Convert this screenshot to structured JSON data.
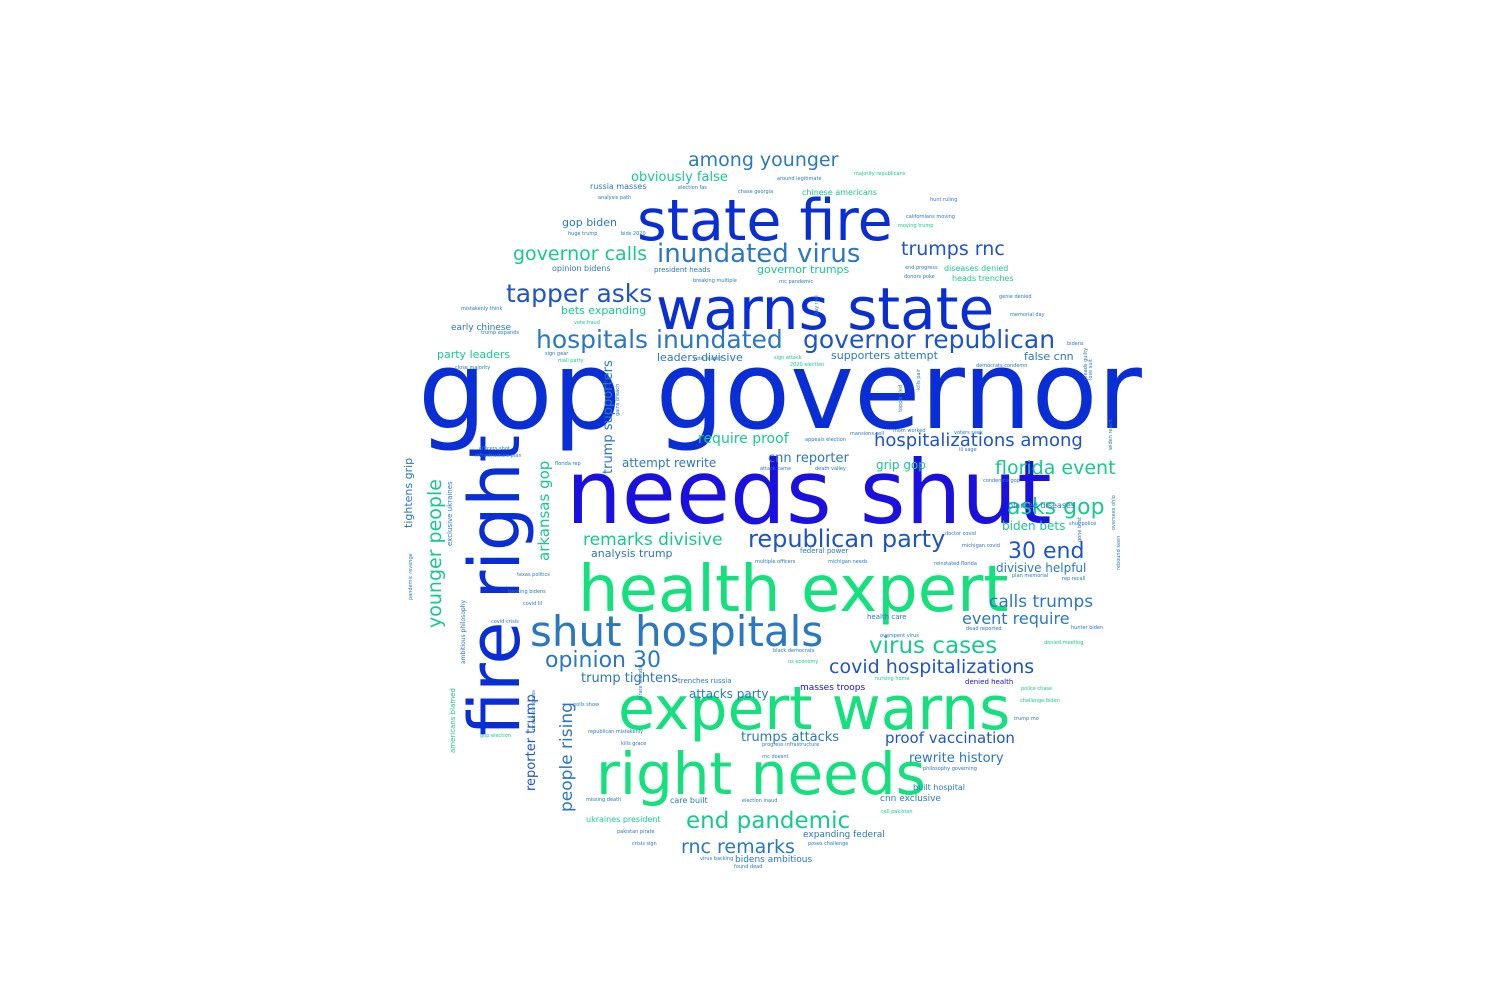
{
  "colors": {
    "royal_blue": "#0a2ed6",
    "deep_blue": "#1a10e0",
    "mid_blue": "#1d55c8",
    "steel_blue": "#2a78c2",
    "teal": "#12a6a6",
    "sea_green": "#18c98f",
    "spring_green": "#14e07e"
  },
  "words": [
    {
      "text": "gop governor",
      "weight": 1.0,
      "color": "royal_blue",
      "vertical": false
    },
    {
      "text": "needs shut",
      "weight": 0.82,
      "color": "deep_blue",
      "vertical": false
    },
    {
      "text": "fire right",
      "weight": 0.64,
      "color": "royal_blue",
      "vertical": true
    },
    {
      "text": "health expert",
      "weight": 0.62,
      "color": "spring_green",
      "vertical": false
    },
    {
      "text": "expert warns",
      "weight": 0.58,
      "color": "spring_green",
      "vertical": false
    },
    {
      "text": "warns state",
      "weight": 0.57,
      "color": "royal_blue",
      "vertical": false
    },
    {
      "text": "state fire",
      "weight": 0.56,
      "color": "royal_blue",
      "vertical": false
    },
    {
      "text": "right needs",
      "weight": 0.57,
      "color": "spring_green",
      "vertical": false
    },
    {
      "text": "shut hospitals",
      "weight": 0.45,
      "color": "steel_blue",
      "vertical": false
    },
    {
      "text": "hospitals inundated",
      "weight": 0.28,
      "color": "steel_blue",
      "vertical": false
    },
    {
      "text": "governor republican",
      "weight": 0.28,
      "color": "mid_blue",
      "vertical": false
    },
    {
      "text": "inundated virus",
      "weight": 0.28,
      "color": "steel_blue",
      "vertical": false
    },
    {
      "text": "tapper asks",
      "weight": 0.27,
      "color": "mid_blue",
      "vertical": false
    },
    {
      "text": "republican party",
      "weight": 0.25,
      "color": "mid_blue",
      "vertical": false
    },
    {
      "text": "virus cases",
      "weight": 0.25,
      "color": "sea_green",
      "vertical": false
    },
    {
      "text": "end pandemic",
      "weight": 0.25,
      "color": "sea_green",
      "vertical": false
    },
    {
      "text": "opinion 30",
      "weight": 0.24,
      "color": "steel_blue",
      "vertical": false
    },
    {
      "text": "asks gop",
      "weight": 0.24,
      "color": "sea_green",
      "vertical": false
    },
    {
      "text": "30 end",
      "weight": 0.24,
      "color": "mid_blue",
      "vertical": false
    },
    {
      "text": "younger people",
      "weight": 0.22,
      "color": "sea_green",
      "vertical": true
    },
    {
      "text": "governor calls",
      "weight": 0.21,
      "color": "sea_green",
      "vertical": false
    },
    {
      "text": "among younger",
      "weight": 0.2,
      "color": "steel_blue",
      "vertical": false
    },
    {
      "text": "trumps rnc",
      "weight": 0.2,
      "color": "mid_blue",
      "vertical": false
    },
    {
      "text": "hospitalizations among",
      "weight": 0.2,
      "color": "mid_blue",
      "vertical": false
    },
    {
      "text": "florida event",
      "weight": 0.2,
      "color": "sea_green",
      "vertical": false
    },
    {
      "text": "covid hospitalizations",
      "weight": 0.2,
      "color": "mid_blue",
      "vertical": false
    },
    {
      "text": "rnc remarks",
      "weight": 0.2,
      "color": "steel_blue",
      "vertical": false
    },
    {
      "text": "remarks divisive",
      "weight": 0.19,
      "color": "sea_green",
      "vertical": false
    },
    {
      "text": "calls trumps",
      "weight": 0.18,
      "color": "steel_blue",
      "vertical": false
    },
    {
      "text": "people rising",
      "weight": 0.18,
      "color": "steel_blue",
      "vertical": true
    },
    {
      "text": "arkansas gop",
      "weight": 0.16,
      "color": "sea_green",
      "vertical": true
    },
    {
      "text": "event require",
      "weight": 0.16,
      "color": "steel_blue",
      "vertical": false
    },
    {
      "text": "proof vaccination",
      "weight": 0.15,
      "color": "mid_blue",
      "vertical": false
    },
    {
      "text": "require proof",
      "weight": 0.15,
      "color": "sea_green",
      "vertical": false
    },
    {
      "text": "cnn reporter",
      "weight": 0.14,
      "color": "steel_blue",
      "vertical": false
    },
    {
      "text": "trumps attacks",
      "weight": 0.14,
      "color": "steel_blue",
      "vertical": false
    },
    {
      "text": "rewrite history",
      "weight": 0.14,
      "color": "steel_blue",
      "vertical": false
    },
    {
      "text": "trump supporters",
      "weight": 0.14,
      "color": "steel_blue",
      "vertical": true
    },
    {
      "text": "reporter trump",
      "weight": 0.14,
      "color": "mid_blue",
      "vertical": true
    },
    {
      "text": "attempt rewrite",
      "weight": 0.13,
      "color": "steel_blue",
      "vertical": false
    },
    {
      "text": "trump tightens",
      "weight": 0.13,
      "color": "steel_blue",
      "vertical": false
    },
    {
      "text": "attacks party",
      "weight": 0.13,
      "color": "steel_blue",
      "vertical": false
    },
    {
      "text": "grip gop",
      "weight": 0.13,
      "color": "sea_green",
      "vertical": false
    },
    {
      "text": "biden bets",
      "weight": 0.13,
      "color": "sea_green",
      "vertical": false
    },
    {
      "text": "divisive helpful",
      "weight": 0.13,
      "color": "steel_blue",
      "vertical": false
    },
    {
      "text": "obviously false",
      "weight": 0.13,
      "color": "sea_green",
      "vertical": false
    },
    {
      "text": "tightens grip",
      "weight": 0.12,
      "color": "steel_blue",
      "vertical": true
    },
    {
      "text": "party leaders",
      "weight": 0.12,
      "color": "sea_green",
      "vertical": false
    },
    {
      "text": "leaders divisive",
      "weight": 0.12,
      "color": "steel_blue",
      "vertical": false
    },
    {
      "text": "supporters attempt",
      "weight": 0.12,
      "color": "steel_blue",
      "vertical": false
    },
    {
      "text": "false cnn",
      "weight": 0.12,
      "color": "steel_blue",
      "vertical": false
    },
    {
      "text": "bets expanding",
      "weight": 0.12,
      "color": "sea_green",
      "vertical": false
    },
    {
      "text": "governor trumps",
      "weight": 0.12,
      "color": "sea_green",
      "vertical": false
    },
    {
      "text": "gop biden",
      "weight": 0.12,
      "color": "steel_blue",
      "vertical": false
    },
    {
      "text": "early chinese",
      "weight": 0.1,
      "color": "steel_blue",
      "vertical": false
    },
    {
      "text": "analysis trump",
      "weight": 0.11,
      "color": "steel_blue",
      "vertical": false
    },
    {
      "text": "expanding federal",
      "weight": 0.1,
      "color": "steel_blue",
      "vertical": false
    },
    {
      "text": "cnn exclusive",
      "weight": 0.09,
      "color": "steel_blue",
      "vertical": false
    },
    {
      "text": "masses troops",
      "weight": 0.09,
      "color": "deep_blue",
      "vertical": false
    },
    {
      "text": "bidens ambitious",
      "weight": 0.09,
      "color": "steel_blue",
      "vertical": false
    },
    {
      "text": "care built",
      "weight": 0.08,
      "color": "steel_blue",
      "vertical": false
    },
    {
      "text": "ukraines president",
      "weight": 0.08,
      "color": "sea_green",
      "vertical": false
    },
    {
      "text": "built hospital",
      "weight": 0.08,
      "color": "steel_blue",
      "vertical": false
    },
    {
      "text": "chinese americans",
      "weight": 0.08,
      "color": "sea_green",
      "vertical": false
    },
    {
      "text": "russia masses",
      "weight": 0.08,
      "color": "steel_blue",
      "vertical": false
    },
    {
      "text": "opinion bidens",
      "weight": 0.08,
      "color": "steel_blue",
      "vertical": false
    },
    {
      "text": "president heads",
      "weight": 0.08,
      "color": "steel_blue",
      "vertical": false
    },
    {
      "text": "diseases denied",
      "weight": 0.08,
      "color": "sea_green",
      "vertical": false
    },
    {
      "text": "heads trenches",
      "weight": 0.08,
      "color": "sea_green",
      "vertical": false
    },
    {
      "text": "blamed diseases",
      "weight": 0.08,
      "color": "steel_blue",
      "vertical": false
    },
    {
      "text": "denied health",
      "weight": 0.08,
      "color": "deep_blue",
      "vertical": false
    },
    {
      "text": "trenches russia",
      "weight": 0.07,
      "color": "steel_blue",
      "vertical": false
    },
    {
      "text": "health care",
      "weight": 0.07,
      "color": "steel_blue",
      "vertical": false
    },
    {
      "text": "federal power",
      "weight": 0.07,
      "color": "steel_blue",
      "vertical": false
    },
    {
      "text": "americans blamed",
      "weight": 0.07,
      "color": "sea_green",
      "vertical": true
    },
    {
      "text": "exclusive ukraines",
      "weight": 0.07,
      "color": "steel_blue",
      "vertical": true
    },
    {
      "text": "ambitious philosophy",
      "weight": 0.07,
      "color": "steel_blue",
      "vertical": true
    },
    {
      "text": "missing death",
      "weight": 0.06,
      "color": "steel_blue",
      "vertical": false
    },
    {
      "text": "election inaud",
      "weight": 0.06,
      "color": "steel_blue",
      "vertical": false
    },
    {
      "text": "philosophy governing",
      "weight": 0.06,
      "color": "steel_blue",
      "vertical": false
    },
    {
      "text": "michigan covid",
      "weight": 0.06,
      "color": "steel_blue",
      "vertical": false
    },
    {
      "text": "multiple officers",
      "weight": 0.06,
      "color": "steel_blue",
      "vertical": false
    },
    {
      "text": "michigan needs",
      "weight": 0.06,
      "color": "steel_blue",
      "vertical": false
    },
    {
      "text": "attack came",
      "weight": 0.06,
      "color": "steel_blue",
      "vertical": false
    },
    {
      "text": "death valley",
      "weight": 0.06,
      "color": "steel_blue",
      "vertical": false
    },
    {
      "text": "black democrats",
      "weight": 0.06,
      "color": "steel_blue",
      "vertical": false
    },
    {
      "text": "trump mo",
      "weight": 0.06,
      "color": "steel_blue",
      "vertical": false
    },
    {
      "text": "police chase",
      "weight": 0.06,
      "color": "sea_green",
      "vertical": false
    },
    {
      "text": "lil sage",
      "weight": 0.05,
      "color": "steel_blue",
      "vertical": false
    },
    {
      "text": "condemns gop",
      "weight": 0.05,
      "color": "steel_blue",
      "vertical": false
    },
    {
      "text": "doctor covid",
      "weight": 0.05,
      "color": "steel_blue",
      "vertical": false
    },
    {
      "text": "election fas",
      "weight": 0.05,
      "color": "steel_blue",
      "vertical": false
    },
    {
      "text": "chase georgia",
      "weight": 0.05,
      "color": "steel_blue",
      "vertical": false
    },
    {
      "text": "majority republicans",
      "weight": 0.05,
      "color": "sea_green",
      "vertical": false
    },
    {
      "text": "hunt ruling",
      "weight": 0.05,
      "color": "steel_blue",
      "vertical": false
    },
    {
      "text": "californians moving",
      "weight": 0.05,
      "color": "steel_blue",
      "vertical": false
    },
    {
      "text": "moving trump",
      "weight": 0.05,
      "color": "sea_green",
      "vertical": false
    },
    {
      "text": "mistakenly think",
      "weight": 0.05,
      "color": "steel_blue",
      "vertical": false
    },
    {
      "text": "trump expands",
      "weight": 0.05,
      "color": "steel_blue",
      "vertical": false
    },
    {
      "text": "vote fraud",
      "weight": 0.05,
      "color": "sea_green",
      "vertical": false
    },
    {
      "text": "mall party",
      "weight": 0.05,
      "color": "sea_green",
      "vertical": false
    },
    {
      "text": "close majority",
      "weight": 0.05,
      "color": "steel_blue",
      "vertical": false
    },
    {
      "text": "2020 election",
      "weight": 0.05,
      "color": "sea_green",
      "vertical": false
    },
    {
      "text": "sign attack",
      "weight": 0.05,
      "color": "sea_green",
      "vertical": false
    },
    {
      "text": "democrats condemn",
      "weight": 0.05,
      "color": "steel_blue",
      "vertical": false
    },
    {
      "text": "shut police",
      "weight": 0.05,
      "color": "steel_blue",
      "vertical": false
    },
    {
      "text": "officers shot",
      "weight": 0.05,
      "color": "steel_blue",
      "vertical": false
    },
    {
      "text": "infrastructure plan",
      "weight": 0.05,
      "color": "steel_blue",
      "vertical": false
    },
    {
      "text": "covid lil",
      "weight": 0.05,
      "color": "steel_blue",
      "vertical": false
    },
    {
      "text": "covid crisis",
      "weight": 0.05,
      "color": "steel_blue",
      "vertical": false
    },
    {
      "text": "florida rep",
      "weight": 0.05,
      "color": "steel_blue",
      "vertical": false
    },
    {
      "text": "reinstated florida",
      "weight": 0.05,
      "color": "steel_blue",
      "vertical": false
    },
    {
      "text": "texas politics",
      "weight": 0.05,
      "color": "steel_blue",
      "vertical": false
    },
    {
      "text": "backing bidens",
      "weight": 0.05,
      "color": "steel_blue",
      "vertical": false
    },
    {
      "text": "rep recall",
      "weight": 0.05,
      "color": "steel_blue",
      "vertical": false
    },
    {
      "text": "plan memorial",
      "weight": 0.05,
      "color": "steel_blue",
      "vertical": false
    },
    {
      "text": "gop election",
      "weight": 0.05,
      "color": "sea_green",
      "vertical": false
    },
    {
      "text": "kills grace",
      "weight": 0.05,
      "color": "steel_blue",
      "vertical": false
    },
    {
      "text": "republican mistakenly",
      "weight": 0.05,
      "color": "steel_blue",
      "vertical": false
    },
    {
      "text": "polls show",
      "weight": 0.05,
      "color": "steel_blue",
      "vertical": false
    },
    {
      "text": "pakistan pirate",
      "weight": 0.05,
      "color": "steel_blue",
      "vertical": false
    },
    {
      "text": "crisis sign",
      "weight": 0.05,
      "color": "steel_blue",
      "vertical": false
    },
    {
      "text": "virus backing",
      "weight": 0.05,
      "color": "steel_blue",
      "vertical": false
    },
    {
      "text": "found dead",
      "weight": 0.05,
      "color": "steel_blue",
      "vertical": false
    },
    {
      "text": "cell pakistan",
      "weight": 0.05,
      "color": "sea_green",
      "vertical": false
    },
    {
      "text": "poses challenge",
      "weight": 0.05,
      "color": "steel_blue",
      "vertical": false
    },
    {
      "text": "progress infrastructure",
      "weight": 0.05,
      "color": "steel_blue",
      "vertical": false
    },
    {
      "text": "rnc doesnt",
      "weight": 0.05,
      "color": "steel_blue",
      "vertical": false
    },
    {
      "text": "us economy",
      "weight": 0.05,
      "color": "sea_green",
      "vertical": false
    },
    {
      "text": "challenge biden",
      "weight": 0.05,
      "color": "sea_green",
      "vertical": false
    },
    {
      "text": "denied meeting",
      "weight": 0.05,
      "color": "sea_green",
      "vertical": false
    },
    {
      "text": "hunter biden",
      "weight": 0.05,
      "color": "steel_blue",
      "vertical": false
    },
    {
      "text": "overspent virus",
      "weight": 0.05,
      "color": "steel_blue",
      "vertical": false
    },
    {
      "text": "dead reported",
      "weight": 0.05,
      "color": "steel_blue",
      "vertical": false
    },
    {
      "text": "nursing home",
      "weight": 0.05,
      "color": "sea_green",
      "vertical": false
    },
    {
      "text": "mom worked",
      "weight": 0.05,
      "color": "steel_blue",
      "vertical": false
    },
    {
      "text": "voters seek",
      "weight": 0.05,
      "color": "steel_blue",
      "vertical": false
    },
    {
      "text": "mansions sell",
      "weight": 0.05,
      "color": "steel_blue",
      "vertical": false
    },
    {
      "text": "appeals election",
      "weight": 0.05,
      "color": "steel_blue",
      "vertical": false
    },
    {
      "text": "bidens",
      "weight": 0.05,
      "color": "steel_blue",
      "vertical": false
    },
    {
      "text": "genie denied",
      "weight": 0.05,
      "color": "steel_blue",
      "vertical": false
    },
    {
      "text": "memorial day",
      "weight": 0.05,
      "color": "steel_blue",
      "vertical": false
    },
    {
      "text": "rnc pandemic",
      "weight": 0.05,
      "color": "steel_blue",
      "vertical": false
    },
    {
      "text": "breaking multiple",
      "weight": 0.05,
      "color": "steel_blue",
      "vertical": false
    },
    {
      "text": "end progress",
      "weight": 0.05,
      "color": "steel_blue",
      "vertical": false
    },
    {
      "text": "donors poke",
      "weight": 0.05,
      "color": "steel_blue",
      "vertical": false
    },
    {
      "text": "bids 2020",
      "weight": 0.05,
      "color": "steel_blue",
      "vertical": false
    },
    {
      "text": "huge trump",
      "weight": 0.05,
      "color": "steel_blue",
      "vertical": false
    },
    {
      "text": "analysis path",
      "weight": 0.05,
      "color": "steel_blue",
      "vertical": false
    },
    {
      "text": "around legitimate",
      "weight": 0.05,
      "color": "steel_blue",
      "vertical": false
    },
    {
      "text": "vote feared",
      "weight": 0.05,
      "color": "steel_blue",
      "vertical": false
    },
    {
      "text": "sign gear",
      "weight": 0.05,
      "color": "steel_blue",
      "vertical": false
    },
    {
      "text": "gains breach",
      "weight": 0.05,
      "color": "steel_blue",
      "vertical": true
    },
    {
      "text": "topple tied",
      "weight": 0.05,
      "color": "steel_blue",
      "vertical": true
    },
    {
      "text": "lose suit",
      "weight": 0.05,
      "color": "steel_blue",
      "vertical": true
    },
    {
      "text": "widen reach",
      "weight": 0.05,
      "color": "steel_blue",
      "vertical": true
    },
    {
      "text": "rebound seen",
      "weight": 0.05,
      "color": "steel_blue",
      "vertical": true
    },
    {
      "text": "pirate scandal",
      "weight": 0.05,
      "color": "steel_blue",
      "vertical": true
    },
    {
      "text": "pandemic revenge",
      "weight": 0.05,
      "color": "steel_blue",
      "vertical": true
    },
    {
      "text": "ocasio congress",
      "weight": 0.05,
      "color": "steel_blue",
      "vertical": true
    },
    {
      "text": "pleads guilty",
      "weight": 0.05,
      "color": "steel_blue",
      "vertical": true
    },
    {
      "text": "gone bust",
      "weight": 0.05,
      "color": "steel_blue",
      "vertical": true
    },
    {
      "text": "kills pair",
      "weight": 0.05,
      "color": "steel_blue",
      "vertical": true
    },
    {
      "text": "oversees ohio",
      "weight": 0.05,
      "color": "steel_blue",
      "vertical": true
    },
    {
      "text": "pay rise",
      "weight": 0.05,
      "color": "steel_blue",
      "vertical": true
    }
  ]
}
